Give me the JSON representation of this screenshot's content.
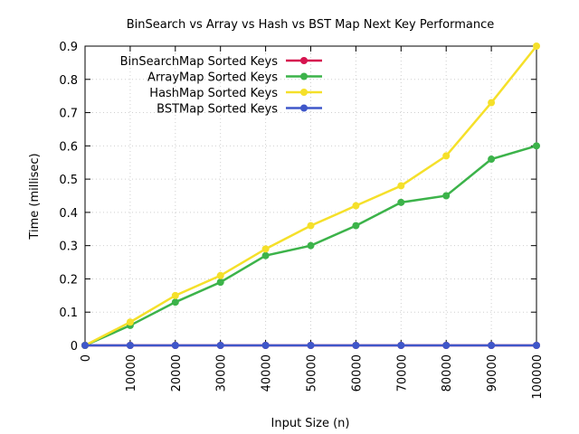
{
  "chart_data": {
    "type": "line",
    "title": "BinSearch vs Array vs Hash vs BST Map Next Key Performance",
    "xlabel": "Input Size (n)",
    "ylabel": "Time (millisec)",
    "xlim": [
      0,
      100000
    ],
    "ylim": [
      0,
      0.9
    ],
    "grid": true,
    "legend_position": "top-left",
    "x": [
      0,
      10000,
      20000,
      30000,
      40000,
      50000,
      60000,
      70000,
      80000,
      90000,
      100000
    ],
    "x_tick_labels": [
      "0",
      "10000",
      "20000",
      "30000",
      "40000",
      "50000",
      "60000",
      "70000",
      "80000",
      "90000",
      "100000"
    ],
    "y_ticks": [
      0,
      0.1,
      0.2,
      0.3,
      0.4,
      0.5,
      0.6,
      0.7,
      0.8,
      0.9
    ],
    "y_tick_labels": [
      "0",
      "0.1",
      "0.2",
      "0.3",
      "0.4",
      "0.5",
      "0.6",
      "0.7",
      "0.8",
      "0.9"
    ],
    "series": [
      {
        "name": "BinSearchMap Sorted Keys",
        "color": "#d6144f",
        "values": [
          0,
          0,
          0,
          0,
          0,
          0,
          0,
          0,
          0,
          0,
          0
        ]
      },
      {
        "name": "ArrayMap Sorted Keys",
        "color": "#3cb34a",
        "values": [
          0,
          0.06,
          0.13,
          0.19,
          0.27,
          0.3,
          0.36,
          0.43,
          0.45,
          0.56,
          0.6
        ]
      },
      {
        "name": "HashMap Sorted Keys",
        "color": "#f5e02a",
        "values": [
          0,
          0.07,
          0.15,
          0.21,
          0.29,
          0.36,
          0.42,
          0.48,
          0.57,
          0.73,
          0.9
        ]
      },
      {
        "name": "BSTMap Sorted Keys",
        "color": "#3f57c9",
        "values": [
          0,
          0,
          0,
          0,
          0,
          0,
          0,
          0,
          0,
          0,
          0
        ]
      }
    ]
  }
}
